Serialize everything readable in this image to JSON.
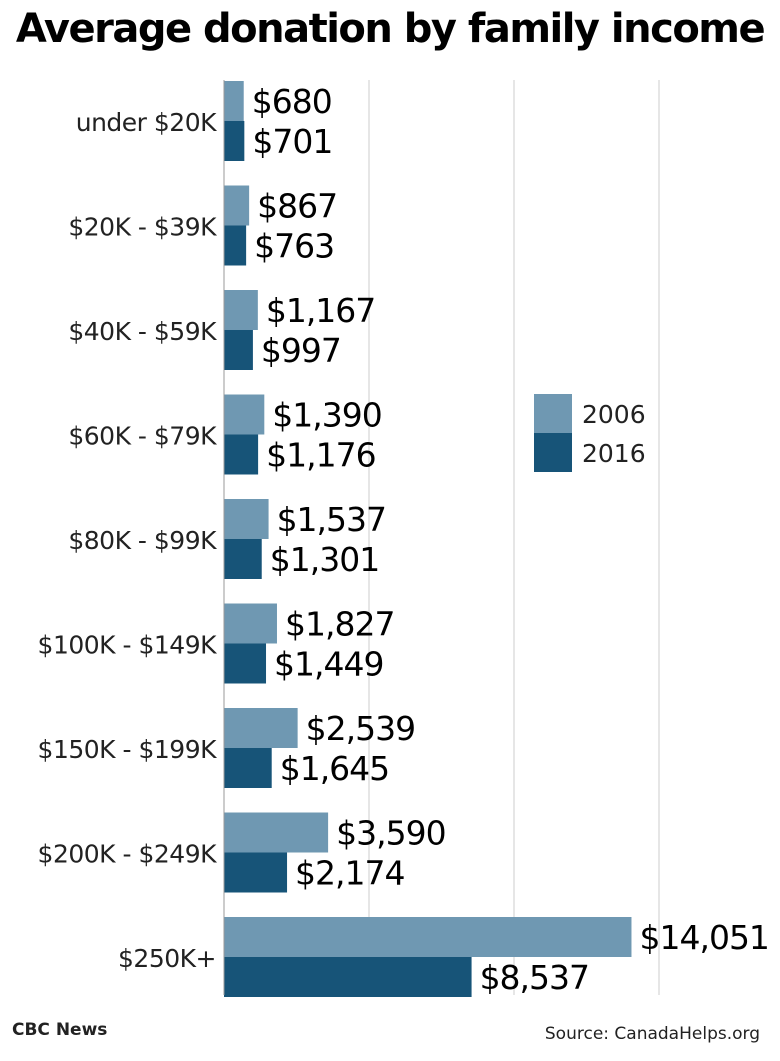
{
  "colors": {
    "series_2006": "#6f98b2",
    "series_2016": "#175478",
    "grid": "#cccccc"
  },
  "footer": {
    "credit": "CBC News",
    "source": "Source: CanadaHelps.org"
  },
  "chart_data": {
    "type": "bar",
    "orientation": "horizontal",
    "title": "Average donation by family income",
    "categories": [
      "under $20K",
      "$20K - $39K",
      "$40K - $59K",
      "$60K - $79K",
      "$80K - $99K",
      "$100K - $149K",
      "$150K - $199K",
      "$200K - $249K",
      "$250K+"
    ],
    "series": [
      {
        "name": "2006",
        "values": [
          680,
          867,
          1167,
          1390,
          1537,
          1827,
          2539,
          3590,
          14051
        ],
        "labels": [
          "$680",
          "$867",
          "$1,167",
          "$1,390",
          "$1,537",
          "$1,827",
          "$2,539",
          "$3,590",
          "$14,051"
        ]
      },
      {
        "name": "2016",
        "values": [
          701,
          763,
          997,
          1176,
          1301,
          1449,
          1645,
          2174,
          8537
        ],
        "labels": [
          "$701",
          "$763",
          "$997",
          "$1,176",
          "$1,301",
          "$1,449",
          "$1,645",
          "$2,174",
          "$8,537"
        ]
      }
    ],
    "xlim": [
      0,
      15000
    ],
    "gridlines": [
      5000,
      10000,
      15000
    ],
    "grid": true,
    "legend_position": "right-middle"
  }
}
